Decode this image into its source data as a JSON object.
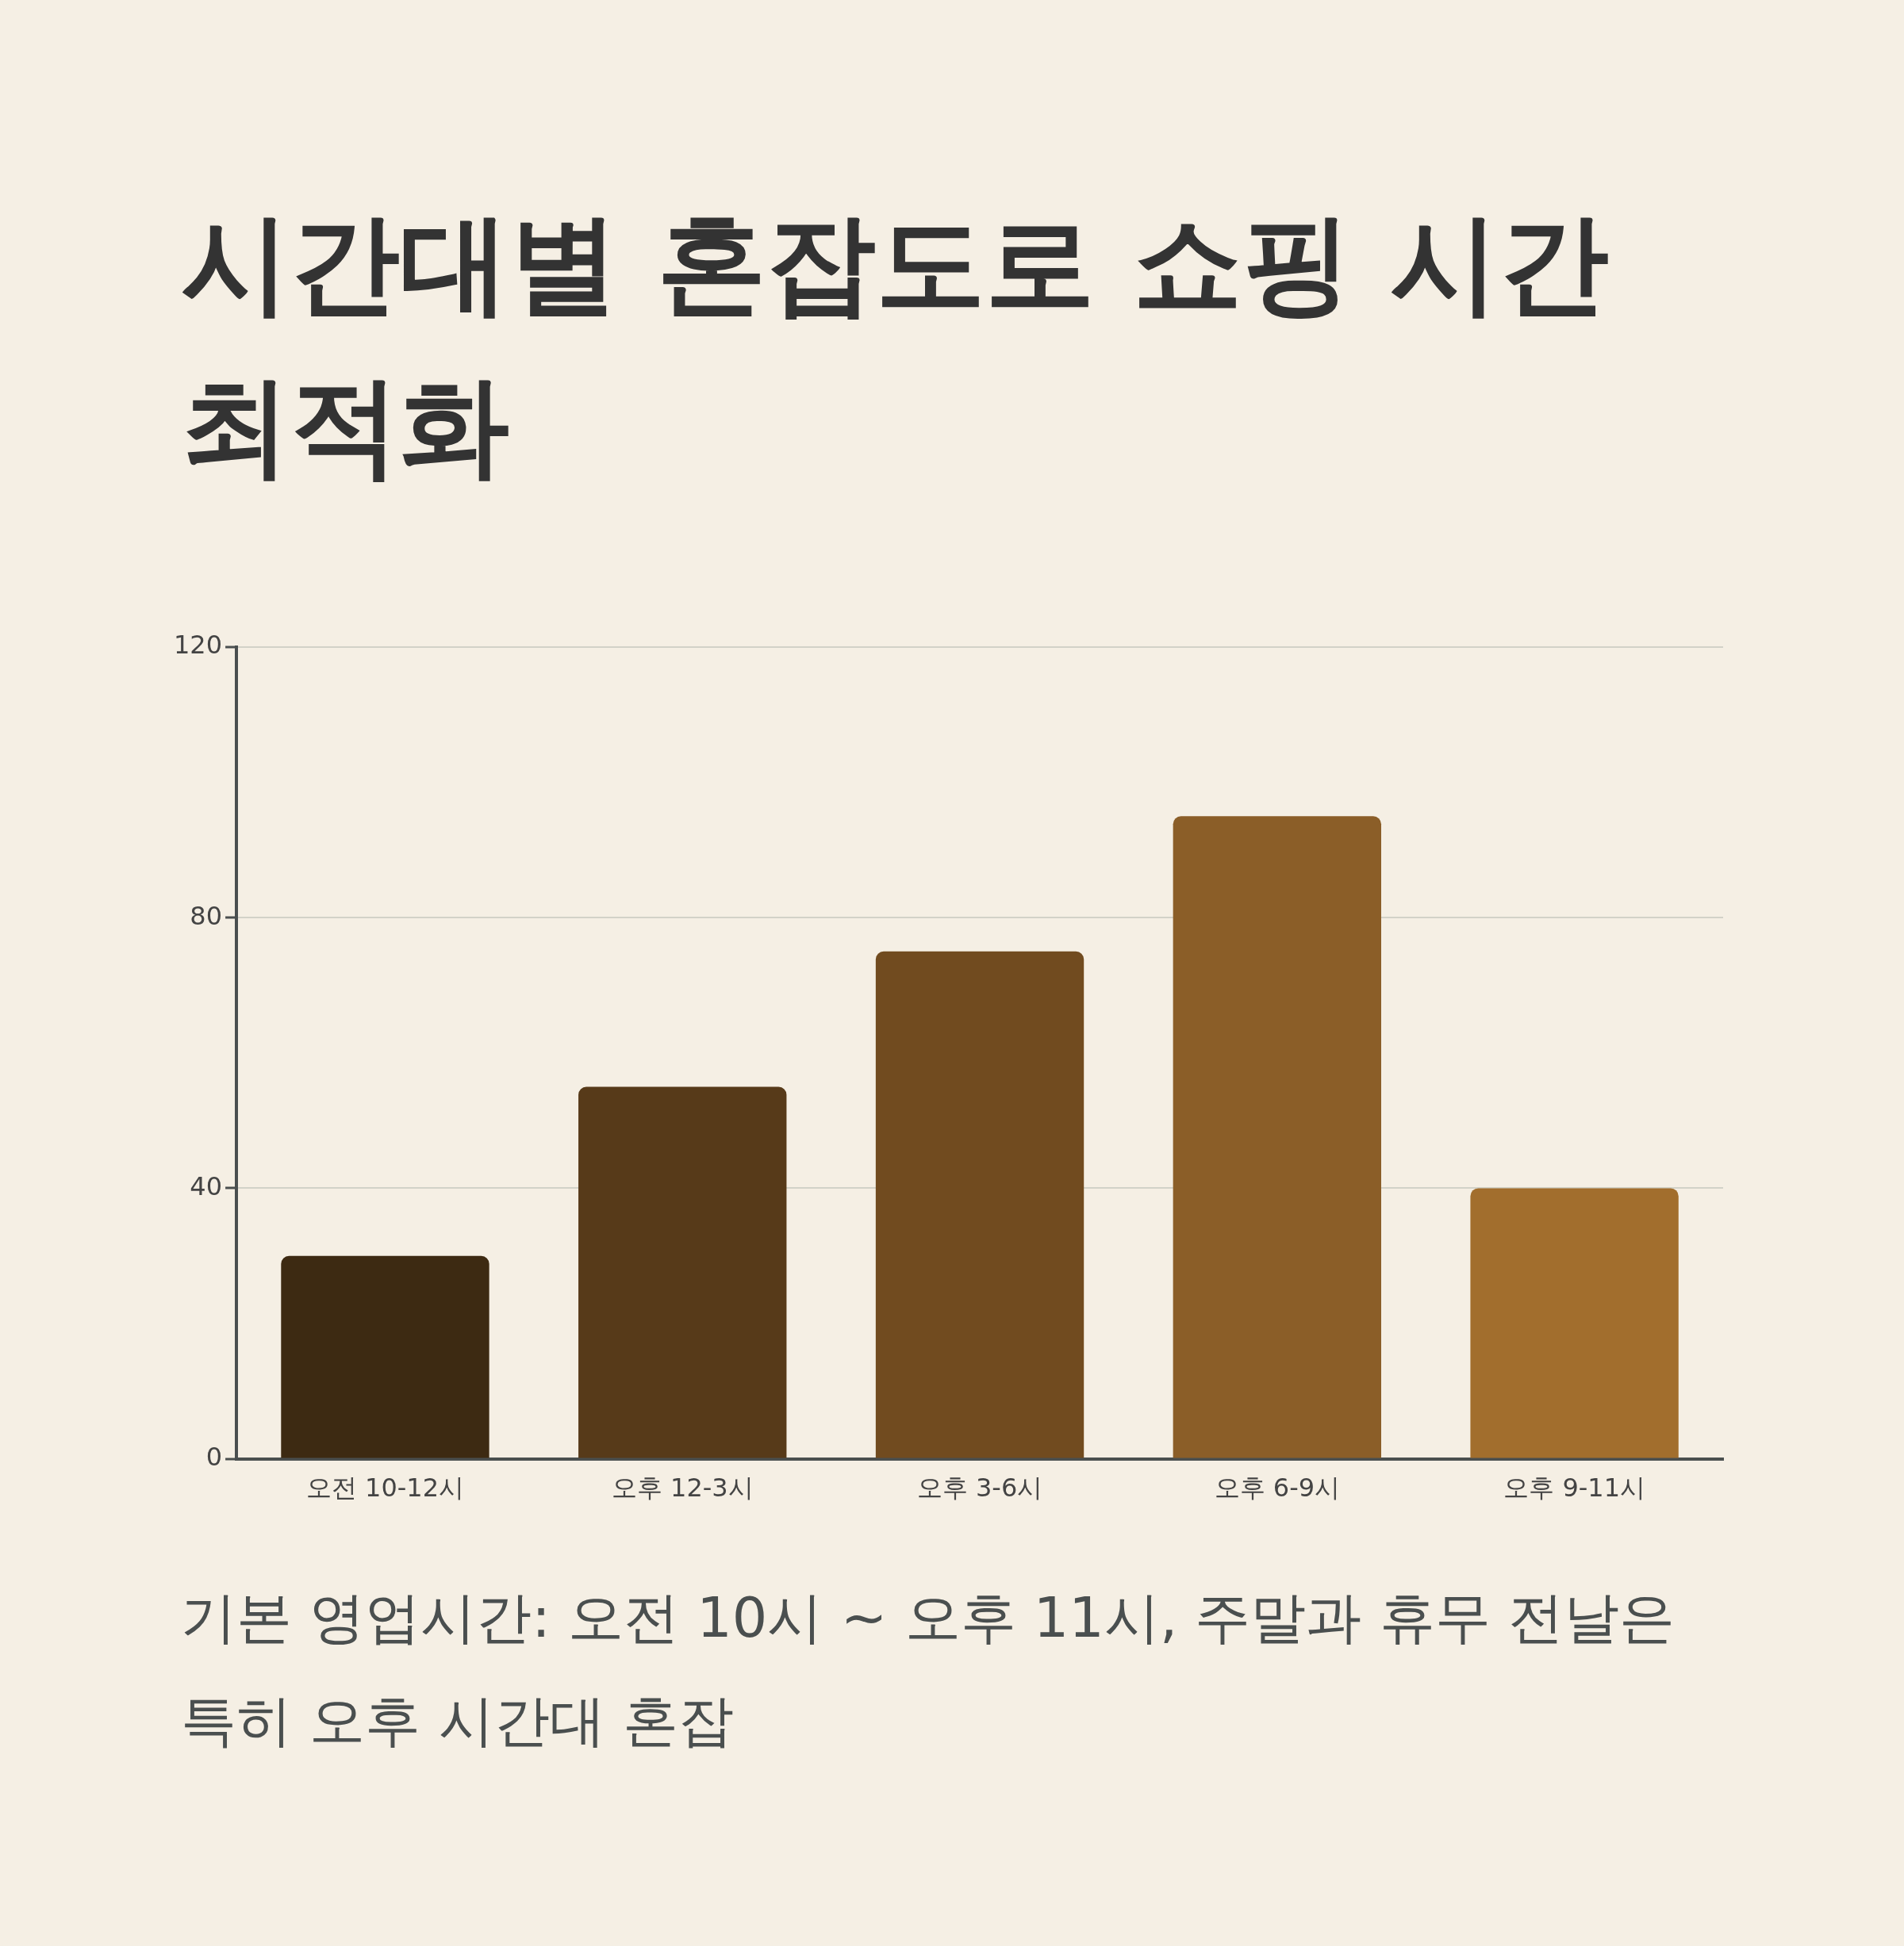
{
  "chart_data": {
    "type": "bar",
    "title": "시간대별 혼잡도로 쇼핑 시간 최적화",
    "categories": [
      "오전 10-12시",
      "오후 12-3시",
      "오후 3-6시",
      "오후 6-9시",
      "오후 9-11시"
    ],
    "values": [
      30,
      55,
      75,
      95,
      40
    ],
    "colors": [
      "#3d2a12",
      "#573a19",
      "#714b1f",
      "#8b5e28",
      "#a26e2d"
    ],
    "ylim": [
      0,
      120
    ],
    "yticks": [
      0,
      40,
      80,
      120
    ],
    "grid": "y",
    "annotations": [
      "기본 영업시간: 오전 10시 ~ 오후 11시, 주말과 휴무 전날은 특히 오후 시간대 혼잡"
    ]
  }
}
